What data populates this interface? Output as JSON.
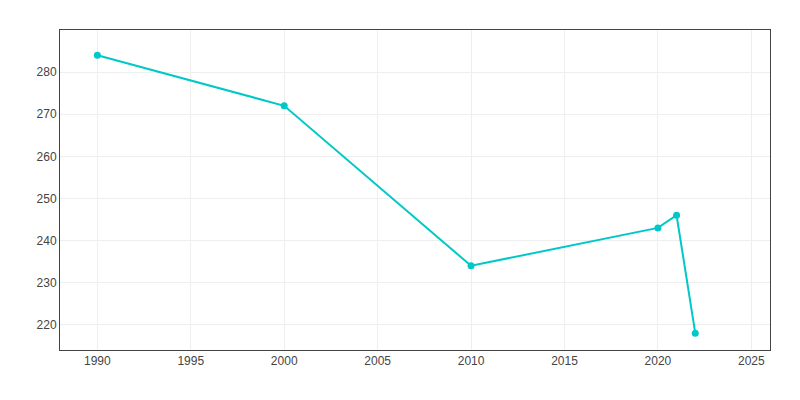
{
  "chart_data": {
    "type": "line",
    "x": [
      1990,
      2000,
      2010,
      2020,
      2021,
      2022
    ],
    "values": [
      284,
      272,
      234,
      243,
      246,
      218
    ],
    "color": "#00C8C8",
    "marker": "circle",
    "line_style": "solid",
    "xlim": [
      1988,
      2026
    ],
    "ylim": [
      214,
      290
    ],
    "xticks": [
      1990,
      1995,
      2000,
      2005,
      2010,
      2015,
      2020,
      2025
    ],
    "yticks": [
      220,
      230,
      240,
      250,
      260,
      270,
      280
    ],
    "grid": true
  }
}
